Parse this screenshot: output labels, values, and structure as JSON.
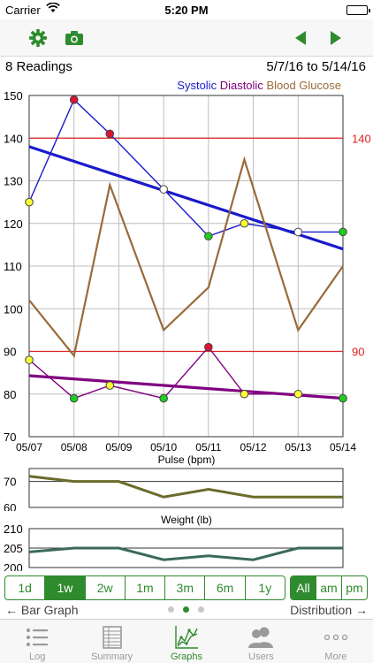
{
  "status_bar": {
    "carrier": "Carrier",
    "time": "5:20 PM"
  },
  "toolbar": {
    "settings_icon": "gear-icon",
    "camera_icon": "camera-icon",
    "prev_icon": "triangle-left-icon",
    "next_icon": "triangle-right-icon",
    "accent": "#2e8b2e"
  },
  "header": {
    "readings": "8 Readings",
    "date_range": "5/7/16 to 5/14/16"
  },
  "legend": [
    {
      "label": "Systolic",
      "color": "#1a1acc"
    },
    {
      "label": "Diastolic",
      "color": "#800080"
    },
    {
      "label": "Blood Glucose",
      "color": "#9a6a3a"
    }
  ],
  "chart_data": [
    {
      "type": "line",
      "x": [
        "05/07",
        "05/08",
        "05/09",
        "05/10",
        "05/11",
        "05/12",
        "05/13",
        "05/14"
      ],
      "ylim": [
        70,
        150
      ],
      "yticks": [
        70,
        80,
        90,
        100,
        110,
        120,
        130,
        140,
        150
      ],
      "grid": true,
      "legend_position": "top-right",
      "threshold_lines": [
        {
          "value": 140,
          "label": "140"
        },
        {
          "value": 90,
          "label": "90"
        }
      ],
      "series": [
        {
          "name": "Systolic",
          "color": "#1a1acc",
          "points": [
            {
              "x": 0.0,
              "y": 125,
              "marker": "#ffff33"
            },
            {
              "x": 1.0,
              "y": 149,
              "marker": "#dd1133"
            },
            {
              "x": 1.8,
              "y": 141,
              "marker": "#dd1133"
            },
            {
              "x": 3.0,
              "y": 128,
              "marker": "#ffffff"
            },
            {
              "x": 4.0,
              "y": 117,
              "marker": "#22cc22"
            },
            {
              "x": 4.8,
              "y": 120,
              "marker": "#ffff33"
            },
            {
              "x": 6.0,
              "y": 118,
              "marker": "#ffffff"
            },
            {
              "x": 7.0,
              "y": 118,
              "marker": "#22cc22"
            }
          ],
          "trend": [
            138,
            114
          ]
        },
        {
          "name": "Diastolic",
          "color": "#800080",
          "points": [
            {
              "x": 0.0,
              "y": 88,
              "marker": "#ffff33"
            },
            {
              "x": 1.0,
              "y": 79,
              "marker": "#22cc22"
            },
            {
              "x": 1.8,
              "y": 82,
              "marker": "#ffff33"
            },
            {
              "x": 3.0,
              "y": 79,
              "marker": "#22cc22"
            },
            {
              "x": 4.0,
              "y": 91,
              "marker": "#dd1133"
            },
            {
              "x": 4.8,
              "y": 80,
              "marker": "#ffff33"
            },
            {
              "x": 6.0,
              "y": 80,
              "marker": "#ffff33"
            },
            {
              "x": 7.0,
              "y": 79,
              "marker": "#22cc22"
            }
          ],
          "trend": [
            84.3,
            79
          ]
        },
        {
          "name": "Blood Glucose",
          "color": "#9a6a3a",
          "points": [
            {
              "x": 0.0,
              "y": 102
            },
            {
              "x": 1.0,
              "y": 89
            },
            {
              "x": 1.8,
              "y": 129
            },
            {
              "x": 3.0,
              "y": 95
            },
            {
              "x": 4.0,
              "y": 105
            },
            {
              "x": 4.8,
              "y": 135
            },
            {
              "x": 6.0,
              "y": 95
            },
            {
              "x": 7.0,
              "y": 110
            }
          ]
        }
      ]
    },
    {
      "type": "line",
      "title": "Pulse (bpm)",
      "ylim": [
        60,
        75
      ],
      "yticks": [
        60,
        70
      ],
      "ref_line": 70,
      "series": [
        {
          "name": "Pulse",
          "color": "#6b6b2a",
          "points": [
            {
              "x": 0,
              "y": 72
            },
            {
              "x": 1,
              "y": 70
            },
            {
              "x": 2,
              "y": 70
            },
            {
              "x": 3,
              "y": 64
            },
            {
              "x": 4,
              "y": 67
            },
            {
              "x": 5,
              "y": 64
            },
            {
              "x": 6,
              "y": 64
            },
            {
              "x": 7,
              "y": 64
            }
          ]
        }
      ]
    },
    {
      "type": "line",
      "title": "Weight (lb)",
      "ylim": [
        200,
        210
      ],
      "yticks": [
        200,
        205,
        210
      ],
      "ref_line": 205,
      "series": [
        {
          "name": "Weight",
          "color": "#3a6a5a",
          "points": [
            {
              "x": 0,
              "y": 204
            },
            {
              "x": 1,
              "y": 205
            },
            {
              "x": 2,
              "y": 205
            },
            {
              "x": 3,
              "y": 202
            },
            {
              "x": 4,
              "y": 203
            },
            {
              "x": 5,
              "y": 202
            },
            {
              "x": 6,
              "y": 205
            },
            {
              "x": 7,
              "y": 205
            }
          ]
        }
      ]
    }
  ],
  "range_segments": [
    {
      "label": "1d",
      "active": false
    },
    {
      "label": "1w",
      "active": true
    },
    {
      "label": "2w",
      "active": false
    },
    {
      "label": "1m",
      "active": false
    },
    {
      "label": "3m",
      "active": false
    },
    {
      "label": "6m",
      "active": false
    },
    {
      "label": "1y",
      "active": false
    }
  ],
  "time_segments": [
    {
      "label": "All",
      "active": true
    },
    {
      "label": "am",
      "active": false
    },
    {
      "label": "pm",
      "active": false
    }
  ],
  "nav": {
    "left": "← Bar Graph",
    "right": "Distribution →"
  },
  "tabs": [
    {
      "label": "Log",
      "icon": "list-icon",
      "active": false
    },
    {
      "label": "Summary",
      "icon": "table-icon",
      "active": false
    },
    {
      "label": "Graphs",
      "icon": "graph-icon",
      "active": true
    },
    {
      "label": "Users",
      "icon": "users-icon",
      "active": false
    },
    {
      "label": "More",
      "icon": "more-icon",
      "active": false
    }
  ]
}
